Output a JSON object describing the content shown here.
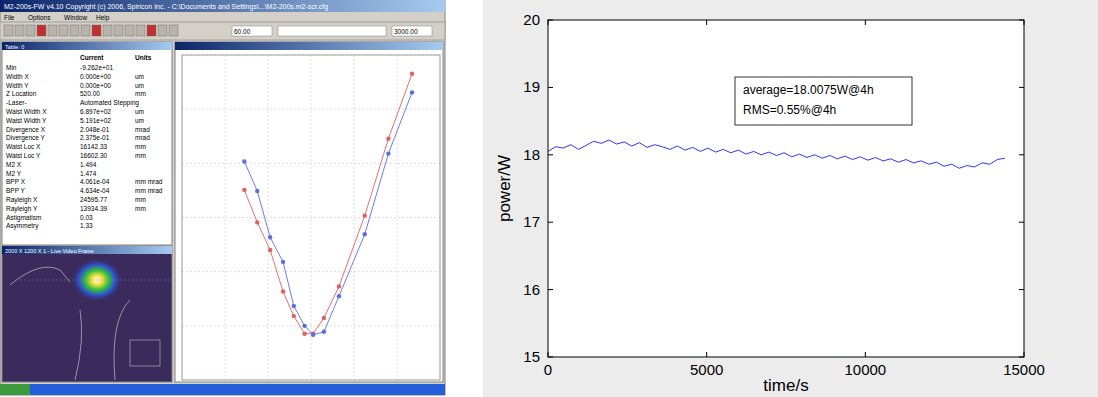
{
  "screenshot": {
    "title_bar": "M2-200s-FW   v4.10   Copyright (c) 2006, Spiricon Inc. - C:\\Documents and Settings\\...\\M2-200s.m2-scr.cfg",
    "menu": [
      "File",
      "Options",
      "Window",
      "Help"
    ],
    "toolbar_fields": [
      "60.00",
      "3000.00"
    ],
    "table": {
      "title": "Table: 0",
      "header": [
        "Current",
        "Units"
      ],
      "rows": [
        [
          "Min",
          "-9.262e+01"
        ],
        [
          "Width X",
          "0.000e+00",
          "um"
        ],
        [
          "Width Y",
          "0.000e+00",
          "um"
        ],
        [
          "Z Location",
          "520.00",
          "mm"
        ],
        [
          "-Laser-",
          "Automated Stepping"
        ],
        [
          "Waist Width X",
          "6.897e+02",
          "um"
        ],
        [
          "Waist Width Y",
          "5.191e+02",
          "um"
        ],
        [
          "Divergence X",
          "2.048e-01",
          "mrad"
        ],
        [
          "Divergence Y",
          "2.375e-01",
          "mrad"
        ],
        [
          "Waist Loc X",
          "16142.33",
          "mm"
        ],
        [
          "Waist Loc Y",
          "16602.30",
          "mm"
        ],
        [
          "M2 X",
          "1.494"
        ],
        [
          "M2 Y",
          "1.474"
        ],
        [
          "BPP X",
          "4.061e-04",
          "mm mrad"
        ],
        [
          "BPP Y",
          "4.634e-04",
          "mm mrad"
        ],
        [
          "Rayleigh X",
          "24595.77",
          "mm"
        ],
        [
          "Rayleigh Y",
          "13934.39",
          "mm"
        ],
        [
          "Astigmatism",
          "0.03"
        ],
        [
          "Asymmetry",
          "1.33"
        ]
      ]
    },
    "video_title": "2000 X 1200 X 1 - Live Video Frame"
  },
  "chart_data": [
    {
      "type": "line",
      "x": [
        489,
        495,
        501,
        507,
        512,
        517,
        521,
        526,
        533,
        545,
        556,
        567
      ],
      "series": [
        {
          "color": "#e06060",
          "marker": "circle",
          "values": [
            702,
            582,
            480,
            327,
            236,
            171,
            171,
            229,
            345,
            607,
            891,
            1131
          ]
        },
        {
          "color": "#5a6ee0",
          "marker": "circle",
          "values": [
            807,
            698,
            527,
            436,
            273,
            200,
            167,
            178,
            309,
            538,
            836,
            1062
          ]
        }
      ],
      "xlim": [
        460,
        580
      ],
      "xticks": [
        460,
        480,
        500,
        520,
        540,
        560,
        580
      ],
      "ylim": [
        0,
        1200
      ],
      "yticks": [
        0,
        200,
        400,
        600,
        800,
        1000,
        1200
      ],
      "grid": true,
      "tick_labels": false
    },
    {
      "type": "line",
      "x_label": "time/s",
      "y_label": "power/W",
      "annotations": [
        "average=18.0075W@4h",
        "RMS=0.55%@4h"
      ],
      "color": "#0000ff",
      "x": [
        0,
        240,
        480,
        720,
        960,
        1200,
        1440,
        1680,
        1920,
        2160,
        2400,
        2640,
        2880,
        3120,
        3360,
        3600,
        3840,
        4080,
        4320,
        4560,
        4800,
        5040,
        5280,
        5520,
        5760,
        6000,
        6240,
        6480,
        6720,
        6960,
        7200,
        7440,
        7680,
        7920,
        8160,
        8400,
        8640,
        8880,
        9120,
        9360,
        9600,
        9840,
        10080,
        10320,
        10560,
        10800,
        11040,
        11280,
        11520,
        11760,
        12000,
        12240,
        12480,
        12720,
        12960,
        13200,
        13440,
        13680,
        13920,
        14160,
        14400
      ],
      "values": [
        18.05,
        18.12,
        18.1,
        18.15,
        18.08,
        18.14,
        18.2,
        18.17,
        18.22,
        18.16,
        18.19,
        18.13,
        18.18,
        18.11,
        18.15,
        18.12,
        18.08,
        18.13,
        18.07,
        18.11,
        18.05,
        18.1,
        18.04,
        18.08,
        18.03,
        18.07,
        18.01,
        18.05,
        18.0,
        18.04,
        17.99,
        18.03,
        17.97,
        18.01,
        17.96,
        18.0,
        17.95,
        17.99,
        17.94,
        17.98,
        17.93,
        17.97,
        17.92,
        17.96,
        17.91,
        17.94,
        17.89,
        17.93,
        17.88,
        17.91,
        17.86,
        17.89,
        17.83,
        17.86,
        17.8,
        17.84,
        17.82,
        17.88,
        17.86,
        17.93,
        17.95
      ],
      "xlim": [
        0,
        15000
      ],
      "xticks": [
        0,
        5000,
        10000,
        15000
      ],
      "ylim": [
        15,
        20
      ],
      "yticks": [
        15,
        16,
        17,
        18,
        19,
        20
      ],
      "grid": false
    }
  ]
}
